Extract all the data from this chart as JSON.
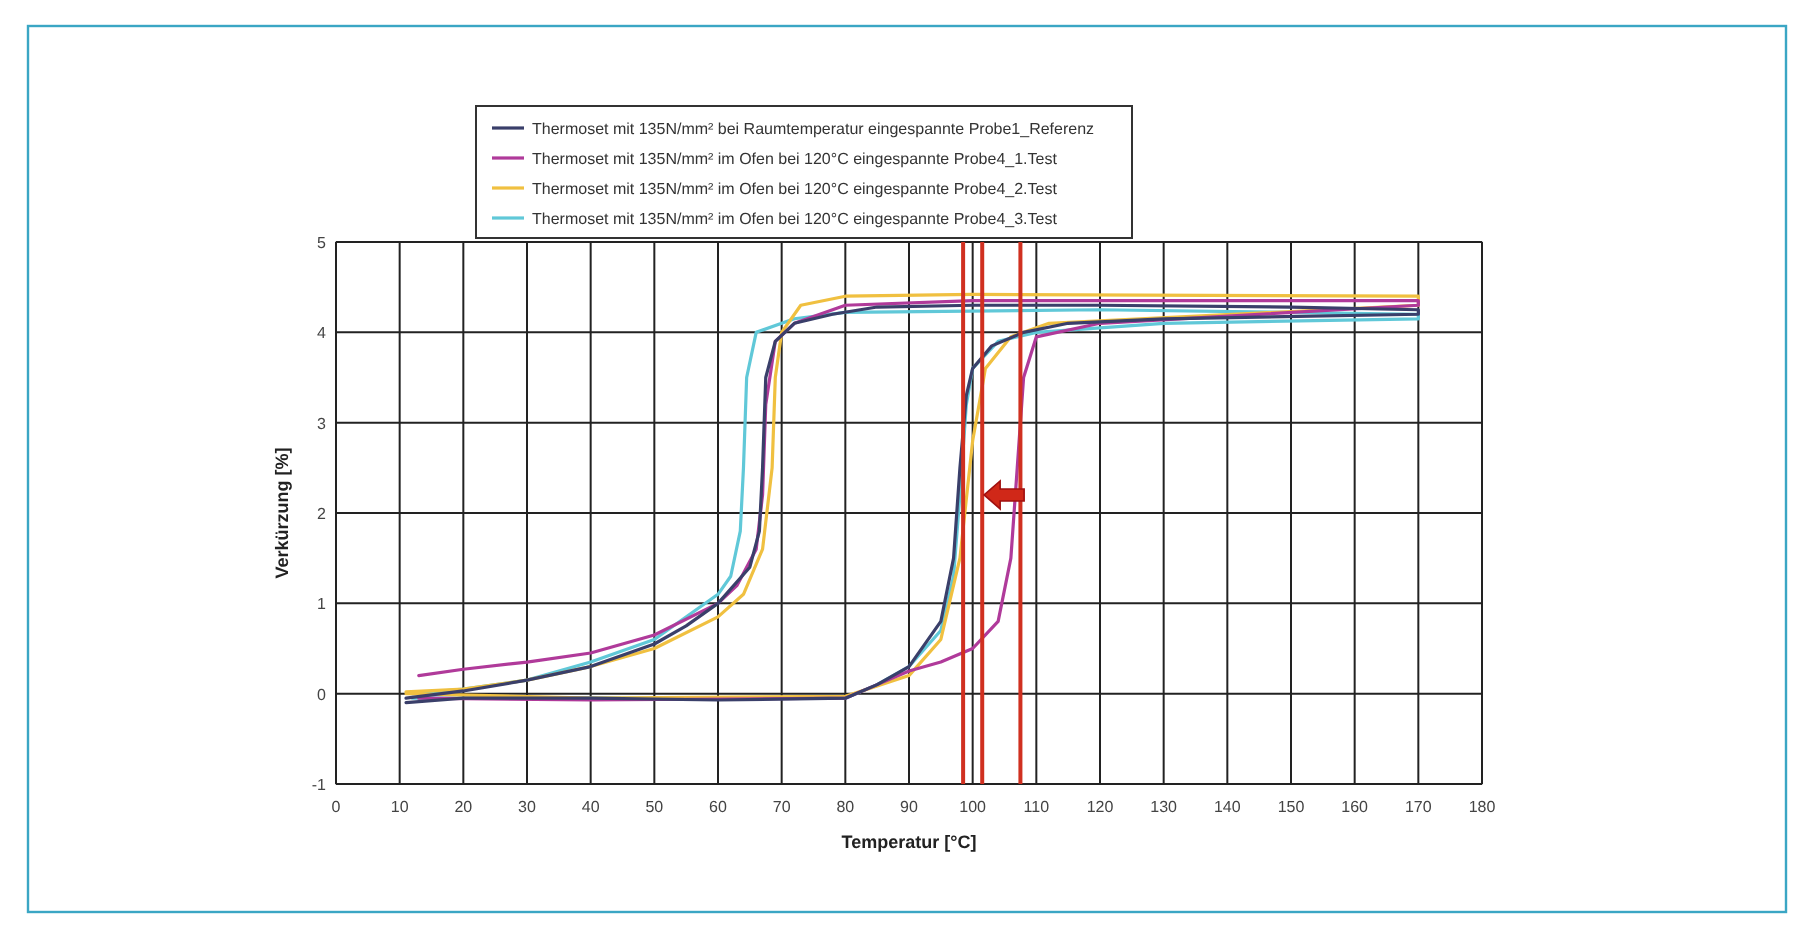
{
  "chart_data": {
    "type": "line",
    "xlabel": "Temperatur [°C]",
    "ylabel": "Verkürzung [%]",
    "xlim": [
      0,
      180
    ],
    "xticks": [
      0,
      10,
      20,
      30,
      40,
      50,
      60,
      70,
      80,
      90,
      100,
      110,
      120,
      130,
      140,
      150,
      160,
      170,
      180
    ],
    "ylim": [
      -1,
      5
    ],
    "yticks": [
      -1,
      0,
      1,
      2,
      3,
      4,
      5
    ],
    "grid": true,
    "legend": "top",
    "marker": "none",
    "line_style": "solid",
    "series": [
      {
        "name": "Thermoset mit 135N/mm² bei Raumtemperatur eingespannte Probe1_Referenz",
        "color": "#3a3f6a",
        "x": [
          11,
          20,
          40,
          60,
          80,
          85,
          90,
          95,
          97,
          98,
          99,
          100,
          103,
          108,
          115,
          130,
          170,
          170,
          150,
          120,
          100,
          85,
          78,
          72,
          69,
          67.5,
          67,
          66.5,
          65,
          60,
          55,
          50,
          40,
          30,
          20,
          11
        ],
        "values": [
          -0.1,
          -0.05,
          -0.05,
          -0.07,
          -0.05,
          0.1,
          0.3,
          0.8,
          1.5,
          2.5,
          3.3,
          3.6,
          3.85,
          4.0,
          4.1,
          4.15,
          4.2,
          4.25,
          4.28,
          4.3,
          4.3,
          4.28,
          4.2,
          4.1,
          3.9,
          3.5,
          2.5,
          1.8,
          1.4,
          1.0,
          0.75,
          0.55,
          0.3,
          0.15,
          0.03,
          -0.05
        ]
      },
      {
        "name": "Thermoset mit 135N/mm² im Ofen bei 120°C eingespannte Probe4_1.Test",
        "color": "#b03a9a",
        "x": [
          13,
          40,
          80,
          85,
          90,
          95,
          100,
          104,
          106,
          107,
          108,
          110,
          120,
          170,
          170,
          100,
          80,
          72,
          69,
          67.5,
          67,
          66,
          63,
          60,
          50,
          40,
          30,
          20,
          13
        ],
        "values": [
          -0.05,
          -0.07,
          -0.05,
          0.1,
          0.25,
          0.35,
          0.5,
          0.8,
          1.5,
          2.5,
          3.5,
          3.95,
          4.1,
          4.3,
          4.35,
          4.35,
          4.3,
          4.1,
          3.9,
          3.2,
          2.2,
          1.6,
          1.2,
          1.0,
          0.65,
          0.45,
          0.35,
          0.27,
          0.2
        ]
      },
      {
        "name": "Thermoset mit 135N/mm² im Ofen bei 120°C eingespannte Probe4_2.Test",
        "color": "#f0c040",
        "x": [
          11,
          40,
          80,
          90,
          95,
          98,
          100,
          102,
          106,
          112,
          170,
          170,
          100,
          80,
          73,
          70,
          69,
          68.5,
          67,
          64,
          60,
          50,
          40,
          30,
          20,
          11
        ],
        "values": [
          0,
          -0.05,
          -0.03,
          0.2,
          0.6,
          1.5,
          2.8,
          3.6,
          3.95,
          4.1,
          4.3,
          4.4,
          4.42,
          4.4,
          4.3,
          4.0,
          3.5,
          2.5,
          1.6,
          1.1,
          0.85,
          0.5,
          0.3,
          0.15,
          0.05,
          0.02
        ]
      },
      {
        "name": "Thermoset mit 135N/mm² im Ofen bei 120°C eingespannte Probe4_3.Test",
        "color": "#60c8d8",
        "x": [
          12,
          40,
          80,
          85,
          90,
          95,
          97,
          98,
          99,
          100,
          104,
          110,
          130,
          170,
          170,
          120,
          80,
          72,
          66,
          64.5,
          64,
          63.5,
          62,
          60,
          50,
          40,
          30,
          20,
          12
        ],
        "values": [
          -0.05,
          -0.05,
          -0.05,
          0.1,
          0.3,
          0.7,
          1.3,
          2.2,
          3.2,
          3.6,
          3.9,
          4.0,
          4.1,
          4.15,
          4.2,
          4.25,
          4.22,
          4.15,
          4.0,
          3.5,
          2.5,
          1.8,
          1.3,
          1.1,
          0.6,
          0.35,
          0.15,
          0.05,
          0.0
        ]
      }
    ],
    "ref_lines": [
      {
        "axis": "x",
        "value": 98.5,
        "color": "#d03020"
      },
      {
        "axis": "x",
        "value": 101.5,
        "color": "#d03020"
      },
      {
        "axis": "x",
        "value": 107.5,
        "color": "#d03020"
      }
    ]
  }
}
